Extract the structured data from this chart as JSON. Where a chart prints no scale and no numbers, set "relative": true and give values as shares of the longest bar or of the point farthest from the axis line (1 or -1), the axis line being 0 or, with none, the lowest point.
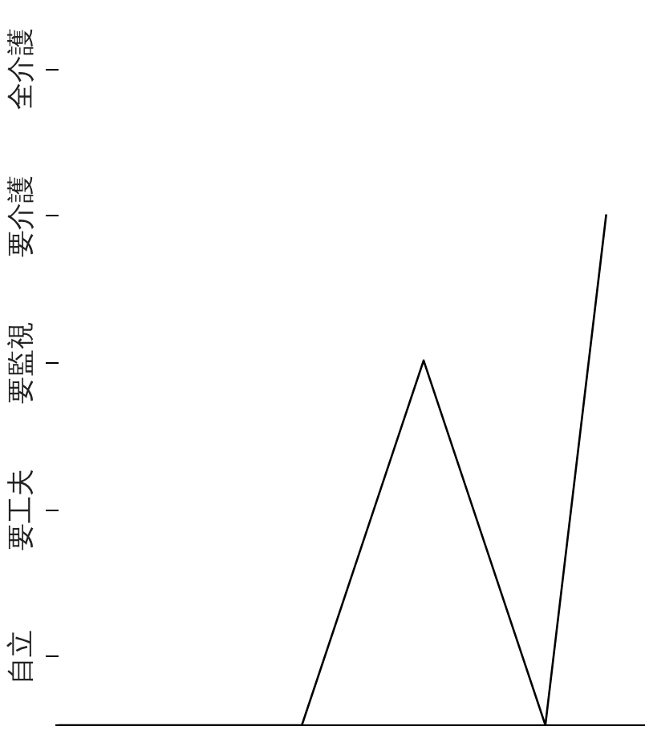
{
  "chart_data": {
    "type": "line",
    "categories": [
      null,
      null,
      null,
      null,
      null,
      null,
      null,
      null,
      null,
      null
    ],
    "series": [
      {
        "color": "#000000",
        "values": [
          0,
          0,
          0,
          0,
          0,
          0.357,
          0.714,
          0.357,
          0,
          1
        ]
      }
    ],
    "relative": true,
    "annotations": [
      "自立",
      "要工夫",
      "要監視",
      "要介護",
      "全介護"
    ],
    "grid": false,
    "marker": "none",
    "line_style": "solid"
  }
}
